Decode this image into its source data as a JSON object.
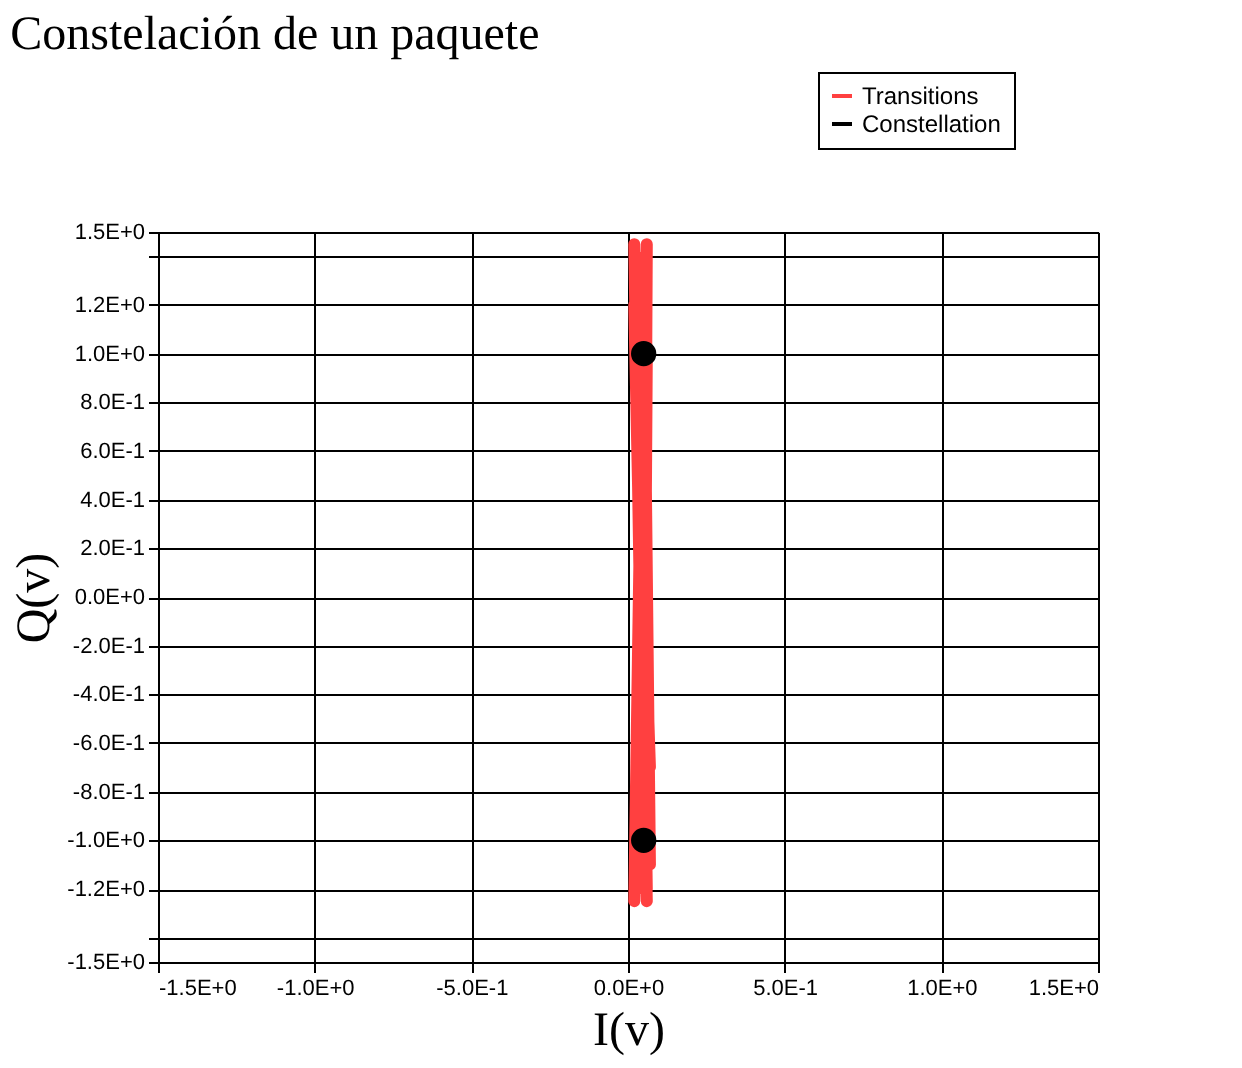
{
  "chart_data": {
    "type": "scatter",
    "title": "Constelación de un paquete",
    "xlabel": "I(v)",
    "ylabel": "Q(v)",
    "xlim": [
      -1.5,
      1.5
    ],
    "ylim": [
      -1.5,
      1.5
    ],
    "xticks": [
      {
        "value": -1.5,
        "label": "-1.5E+0"
      },
      {
        "value": -1.0,
        "label": "-1.0E+0"
      },
      {
        "value": -0.5,
        "label": "-5.0E-1"
      },
      {
        "value": 0,
        "label": "0.0E+0"
      },
      {
        "value": 0.5,
        "label": "5.0E-1"
      },
      {
        "value": 1.0,
        "label": "1.0E+0"
      },
      {
        "value": 1.5,
        "label": "1.5E+0"
      }
    ],
    "yticks": [
      {
        "value": -1.5,
        "label": "-1.5E+0"
      },
      {
        "value": -1.4,
        "label": null
      },
      {
        "value": -1.2,
        "label": "-1.2E+0"
      },
      {
        "value": -1.0,
        "label": "-1.0E+0"
      },
      {
        "value": -0.8,
        "label": "-8.0E-1"
      },
      {
        "value": -0.6,
        "label": "-6.0E-1"
      },
      {
        "value": -0.4,
        "label": "-4.0E-1"
      },
      {
        "value": -0.2,
        "label": "-2.0E-1"
      },
      {
        "value": 0,
        "label": "0.0E+0"
      },
      {
        "value": 0.2,
        "label": "2.0E-1"
      },
      {
        "value": 0.4,
        "label": "4.0E-1"
      },
      {
        "value": 0.6,
        "label": "6.0E-1"
      },
      {
        "value": 0.8,
        "label": "8.0E-1"
      },
      {
        "value": 1.0,
        "label": "1.0E+0"
      },
      {
        "value": 1.2,
        "label": "1.2E+0"
      },
      {
        "value": 1.4,
        "label": null
      },
      {
        "value": 1.5,
        "label": "1.5E+0"
      }
    ],
    "grid": true,
    "legend": "top right",
    "series": [
      {
        "name": "Transitions",
        "type": "line",
        "color": "#ff4040",
        "x": [
          0.02,
          0.05,
          0.03,
          0.06,
          0.02,
          0.07,
          0.04,
          0.06,
          0.03,
          0.05,
          0.06,
          0.02,
          0.05,
          0.07,
          0.04,
          0.03,
          0.06,
          0.05
        ],
        "values": [
          1.45,
          -1.0,
          1.0,
          -1.25,
          1.2,
          -0.7,
          0.45,
          -1.2,
          1.4,
          -1.0,
          1.0,
          -1.25,
          1.3,
          -1.1,
          0.6,
          -1.2,
          1.45,
          -1.0
        ]
      },
      {
        "name": "Constellation",
        "type": "scatter",
        "marker": "circle",
        "color": "#000000",
        "x": [
          0.05,
          0.05
        ],
        "values": [
          1.0,
          -1.0
        ]
      }
    ]
  }
}
